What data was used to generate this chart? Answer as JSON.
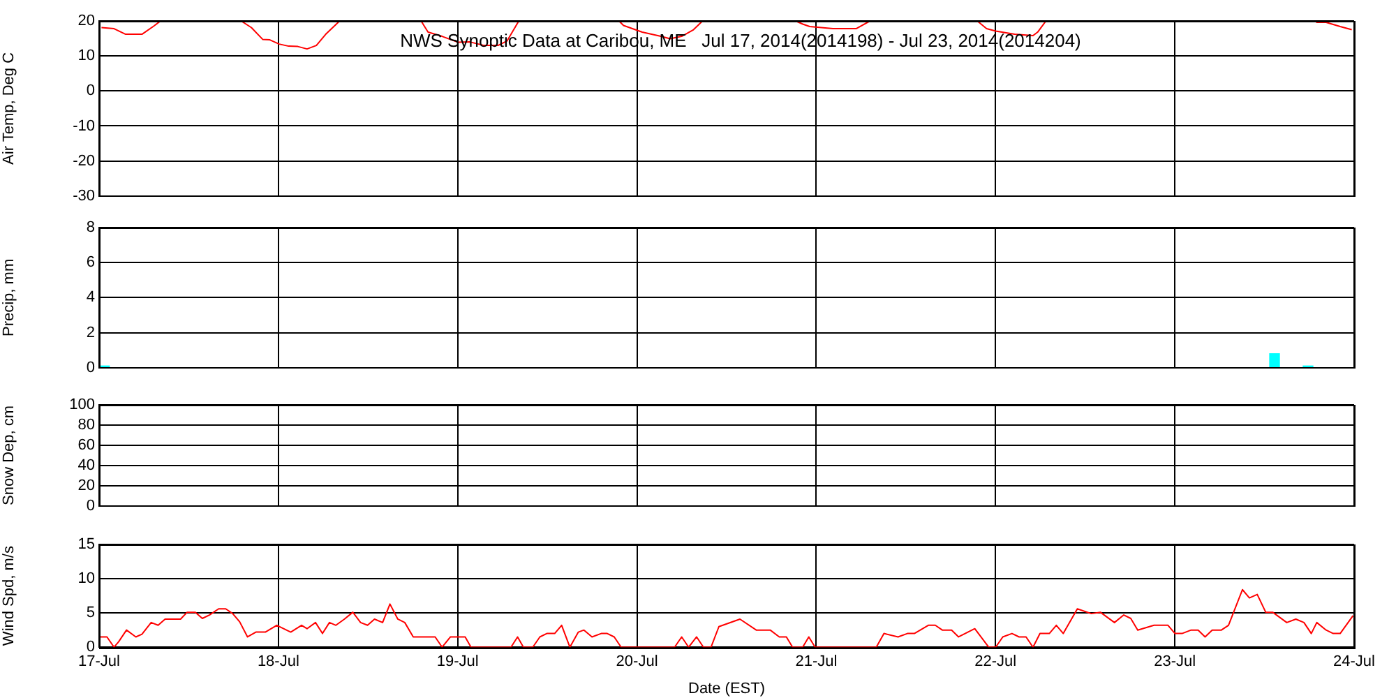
{
  "chart_data": [
    {
      "type": "line",
      "title": "NWS Synoptic Data at Caribou, ME   Jul 17, 2014(2014198) - Jul 23, 2014(2014204)",
      "ylabel": "Air Temp, Deg C",
      "xlim": [
        "2014-07-17",
        "2014-07-24"
      ],
      "xticks": [
        {
          "value": "2014-07-17",
          "label": null
        },
        {
          "value": "2014-07-18",
          "label": null
        },
        {
          "value": "2014-07-19",
          "label": null
        },
        {
          "value": "2014-07-20",
          "label": null
        },
        {
          "value": "2014-07-21",
          "label": null
        },
        {
          "value": "2014-07-22",
          "label": null
        },
        {
          "value": "2014-07-23",
          "label": null
        },
        {
          "value": "2014-07-24",
          "label": null
        }
      ],
      "ylim": [
        -30,
        20
      ],
      "yticks": [
        -30,
        -20,
        -10,
        0,
        10,
        20
      ],
      "grid": true,
      "tick_labels": "y",
      "series": [
        {
          "color": "#ff0000",
          "x": [
            "2014-07-17T00:19",
            "2014-07-17T02:00",
            "2014-07-17T03:33",
            "2014-07-17T05:44",
            "2014-07-17T07:18",
            "2014-07-17T08:14",
            "2014-07-17T13:12",
            "2014-07-17T19:00",
            "2014-07-17T20:23",
            "2014-07-17T21:55",
            "2014-07-17T22:51",
            "2014-07-18T00:06",
            "2014-07-18T01:22",
            "2014-07-18T02:36",
            "2014-07-18T03:50",
            "2014-07-18T05:05",
            "2014-07-18T06:20",
            "2014-07-18T08:12",
            "2014-07-18T13:12",
            "2014-07-18T19:06",
            "2014-07-18T20:02",
            "2014-07-18T21:55",
            "2014-07-19T00:04",
            "2014-07-19T01:39",
            "2014-07-19T03:32",
            "2014-07-19T05:24",
            "2014-07-19T06:37",
            "2014-07-19T08:11",
            "2014-07-19T14:24",
            "2014-07-19T21:35",
            "2014-07-19T22:12",
            "2014-07-20T00:42",
            "2014-07-20T03:12",
            "2014-07-20T04:26",
            "2014-07-20T05:59",
            "2014-07-20T07:34",
            "2014-07-20T08:47",
            "2014-07-20T14:24",
            "2014-07-20T21:14",
            "2014-07-20T22:11",
            "2014-07-20T23:07",
            "2014-07-21T02:14",
            "2014-07-21T05:20",
            "2014-07-21T07:12",
            "2014-07-21T14:24",
            "2014-07-21T21:33",
            "2014-07-21T22:48",
            "2014-07-22T00:01",
            "2014-07-22T02:33",
            "2014-07-22T05:01",
            "2014-07-22T05:38",
            "2014-07-22T06:45",
            "2014-07-22T16:48",
            "2014-07-23T03:27",
            "2014-07-23T04:22",
            "2014-07-23T05:18",
            "2014-07-23T12:00",
            "2014-07-23T18:43",
            "2014-07-23T19:00",
            "2014-07-23T20:15",
            "2014-07-23T22:08",
            "2014-07-23T23:41"
          ],
          "values": [
            18.1,
            17.8,
            16.2,
            16.2,
            18.5,
            20,
            null,
            20,
            18.1,
            14.7,
            14.6,
            13.4,
            12.8,
            12.7,
            12,
            13,
            16.2,
            20,
            null,
            20,
            16.8,
            15.6,
            13.9,
            14,
            13,
            13,
            14.3,
            20,
            null,
            20,
            18.7,
            16.8,
            15.6,
            14.9,
            15.6,
            17.5,
            20,
            null,
            20,
            19.1,
            18.4,
            17.8,
            17.8,
            20,
            null,
            20,
            17.8,
            17.1,
            16.2,
            15.8,
            16.8,
            20,
            null,
            null,
            null,
            null,
            null,
            20,
            19.6,
            19.6,
            18.4,
            17.5
          ]
        }
      ]
    },
    {
      "type": "bar",
      "ylabel": "Precip, mm",
      "xlim": [
        "2014-07-17",
        "2014-07-24"
      ],
      "xticks": [
        {
          "value": "2014-07-17",
          "label": null
        },
        {
          "value": "2014-07-18",
          "label": null
        },
        {
          "value": "2014-07-19",
          "label": null
        },
        {
          "value": "2014-07-20",
          "label": null
        },
        {
          "value": "2014-07-21",
          "label": null
        },
        {
          "value": "2014-07-22",
          "label": null
        },
        {
          "value": "2014-07-23",
          "label": null
        },
        {
          "value": "2014-07-24",
          "label": null
        }
      ],
      "ylim": [
        0,
        8
      ],
      "yticks": [
        0,
        2,
        4,
        6,
        8
      ],
      "grid": true,
      "tick_labels": "y",
      "series": [
        {
          "color": "#00ffff",
          "x": [
            "2014-07-17T00:43",
            "2014-07-23T13:21",
            "2014-07-23T16:32",
            "2014-07-23T17:50"
          ],
          "values": [
            0.1,
            0.8,
            null,
            0.1
          ]
        }
      ]
    },
    {
      "type": "line",
      "ylabel": "Snow Dep, cm",
      "xlim": [
        "2014-07-17",
        "2014-07-24"
      ],
      "xticks": [
        {
          "value": "2014-07-17",
          "label": null
        },
        {
          "value": "2014-07-18",
          "label": null
        },
        {
          "value": "2014-07-19",
          "label": null
        },
        {
          "value": "2014-07-20",
          "label": null
        },
        {
          "value": "2014-07-21",
          "label": null
        },
        {
          "value": "2014-07-22",
          "label": null
        },
        {
          "value": "2014-07-23",
          "label": null
        },
        {
          "value": "2014-07-24",
          "label": null
        }
      ],
      "ylim": [
        0,
        100
      ],
      "yticks": [
        0,
        20,
        40,
        60,
        80,
        100
      ],
      "grid": true,
      "tick_labels": "y"
    },
    {
      "type": "line",
      "xlabel": "Date (EST)",
      "ylabel": "Wind Spd, m/s",
      "xlim": [
        "2014-07-17",
        "2014-07-24"
      ],
      "xticks": [
        {
          "value": "2014-07-17",
          "label": "17-Jul"
        },
        {
          "value": "2014-07-18",
          "label": "18-Jul"
        },
        {
          "value": "2014-07-19",
          "label": "19-Jul"
        },
        {
          "value": "2014-07-20",
          "label": "20-Jul"
        },
        {
          "value": "2014-07-21",
          "label": "21-Jul"
        },
        {
          "value": "2014-07-22",
          "label": "22-Jul"
        },
        {
          "value": "2014-07-23",
          "label": "23-Jul"
        },
        {
          "value": "2014-07-24",
          "label": "24-Jul"
        }
      ],
      "ylim": [
        0,
        15
      ],
      "yticks": [
        0,
        5,
        10,
        15
      ],
      "grid": true,
      "series": [
        {
          "color": "#ff0000",
          "x": [
            "2014-07-17T00:00",
            "2014-07-17T01:03",
            "2014-07-17T02:00",
            "2014-07-17T02:37",
            "2014-07-17T03:40",
            "2014-07-17T04:55",
            "2014-07-17T05:44",
            "2014-07-17T06:58",
            "2014-07-17T07:54",
            "2014-07-17T08:50",
            "2014-07-17T10:54",
            "2014-07-17T11:47",
            "2014-07-17T12:53",
            "2014-07-17T13:49",
            "2014-07-17T14:46",
            "2014-07-17T16:00",
            "2014-07-17T16:57",
            "2014-07-17T17:53",
            "2014-07-17T18:49",
            "2014-07-17T19:52",
            "2014-07-17T20:59",
            "2014-07-17T22:15",
            "2014-07-17T23:47",
            "2014-07-18T01:39",
            "2014-07-18T03:06",
            "2014-07-18T03:50",
            "2014-07-18T04:58",
            "2014-07-18T05:54",
            "2014-07-18T06:50",
            "2014-07-18T07:42",
            "2014-07-18T08:50",
            "2014-07-18T09:58",
            "2014-07-18T11:00",
            "2014-07-18T11:56",
            "2014-07-18T12:52",
            "2014-07-18T13:57",
            "2014-07-18T14:56",
            "2014-07-18T15:59",
            "2014-07-18T16:55",
            "2014-07-18T18:03",
            "2014-07-18T20:59",
            "2014-07-18T21:55",
            "2014-07-18T23:02",
            "2014-07-19T01:00",
            "2014-07-19T01:47",
            "2014-07-19T07:08",
            "2014-07-19T08:01",
            "2014-07-19T08:48",
            "2014-07-19T10:03",
            "2014-07-19T11:00",
            "2014-07-19T11:56",
            "2014-07-19T12:59",
            "2014-07-19T13:55",
            "2014-07-19T15:01",
            "2014-07-19T16:09",
            "2014-07-19T16:54",
            "2014-07-19T17:59",
            "2014-07-19T19:13",
            "2014-07-19T20:01",
            "2014-07-19T20:57",
            "2014-07-19T21:53",
            "2014-07-20T05:02",
            "2014-07-20T05:59",
            "2014-07-20T06:55",
            "2014-07-20T07:59",
            "2014-07-20T08:54",
            "2014-07-20T09:55",
            "2014-07-20T10:58",
            "2014-07-20T13:47",
            "2014-07-20T15:58",
            "2014-07-20T17:50",
            "2014-07-20T19:03",
            "2014-07-20T20:00",
            "2014-07-20T20:50",
            "2014-07-20T22:11",
            "2014-07-20T23:00",
            "2014-07-20T23:51",
            "2014-07-21T08:02",
            "2014-07-21T09:04",
            "2014-07-21T10:57",
            "2014-07-21T12:12",
            "2014-07-21T13:08",
            "2014-07-21T15:00",
            "2014-07-21T15:56",
            "2014-07-21T16:52",
            "2014-07-21T18:07",
            "2014-07-21T19:03",
            "2014-07-21T21:13",
            "2014-07-21T23:05",
            "2014-07-22T00:01",
            "2014-07-22T00:58",
            "2014-07-22T02:12",
            "2014-07-22T03:09",
            "2014-07-22T04:05",
            "2014-07-22T05:01",
            "2014-07-22T05:57",
            "2014-07-22T07:12",
            "2014-07-22T08:08",
            "2014-07-22T09:04",
            "2014-07-22T10:57",
            "2014-07-22T12:49",
            "2014-07-22T14:02",
            "2014-07-22T15:55",
            "2014-07-22T17:10",
            "2014-07-22T18:06",
            "2014-07-22T19:02",
            "2014-07-22T21:13",
            "2014-07-22T23:05",
            "2014-07-23T00:01",
            "2014-07-23T00:58",
            "2014-07-23T02:11",
            "2014-07-23T03:07",
            "2014-07-23T04:03",
            "2014-07-23T05:00",
            "2014-07-23T06:14",
            "2014-07-23T07:11",
            "2014-07-23T09:03",
            "2014-07-23T09:59",
            "2014-07-23T11:02",
            "2014-07-23T12:10",
            "2014-07-23T13:06",
            "2014-07-23T14:59",
            "2014-07-23T16:12",
            "2014-07-23T17:17",
            "2014-07-23T18:16",
            "2014-07-23T19:00",
            "2014-07-23T20:15",
            "2014-07-23T21:12",
            "2014-07-23T22:08",
            "2014-07-23T23:51"
          ],
          "values": [
            1.5,
            1.5,
            0,
            0.8,
            2.5,
            1.5,
            1.9,
            3.6,
            3.2,
            4.1,
            4.1,
            5.1,
            5.1,
            4.2,
            4.7,
            5.6,
            5.6,
            4.9,
            3.7,
            1.5,
            2.2,
            2.2,
            3.2,
            2.2,
            3.2,
            2.7,
            3.6,
            2.0,
            3.6,
            3.2,
            4.1,
            5.1,
            3.6,
            3.2,
            4.1,
            3.6,
            6.3,
            4.1,
            3.6,
            1.5,
            1.5,
            0,
            1.5,
            1.5,
            0,
            0,
            1.5,
            0,
            0,
            1.5,
            2.0,
            2.0,
            3.2,
            0,
            2.2,
            2.5,
            1.5,
            2.0,
            2.0,
            1.5,
            0,
            0,
            1.5,
            0,
            1.5,
            0,
            0,
            3.0,
            4.1,
            2.5,
            2.5,
            1.5,
            1.5,
            0,
            0,
            1.5,
            0,
            0,
            2.0,
            1.5,
            2.0,
            2.0,
            3.2,
            3.2,
            2.5,
            2.5,
            1.5,
            2.7,
            0,
            0,
            1.5,
            2.0,
            1.5,
            1.5,
            0,
            2.0,
            2.0,
            3.2,
            2.0,
            5.6,
            4.9,
            5.1,
            3.6,
            4.7,
            4.2,
            2.5,
            3.2,
            3.2,
            2.0,
            2.0,
            2.5,
            2.5,
            1.5,
            2.5,
            2.5,
            3.2,
            8.4,
            7.2,
            7.7,
            5.1,
            5.1,
            3.6,
            4.1,
            3.6,
            2.0,
            3.6,
            2.5,
            2.0,
            2.0,
            4.6
          ]
        }
      ]
    }
  ]
}
